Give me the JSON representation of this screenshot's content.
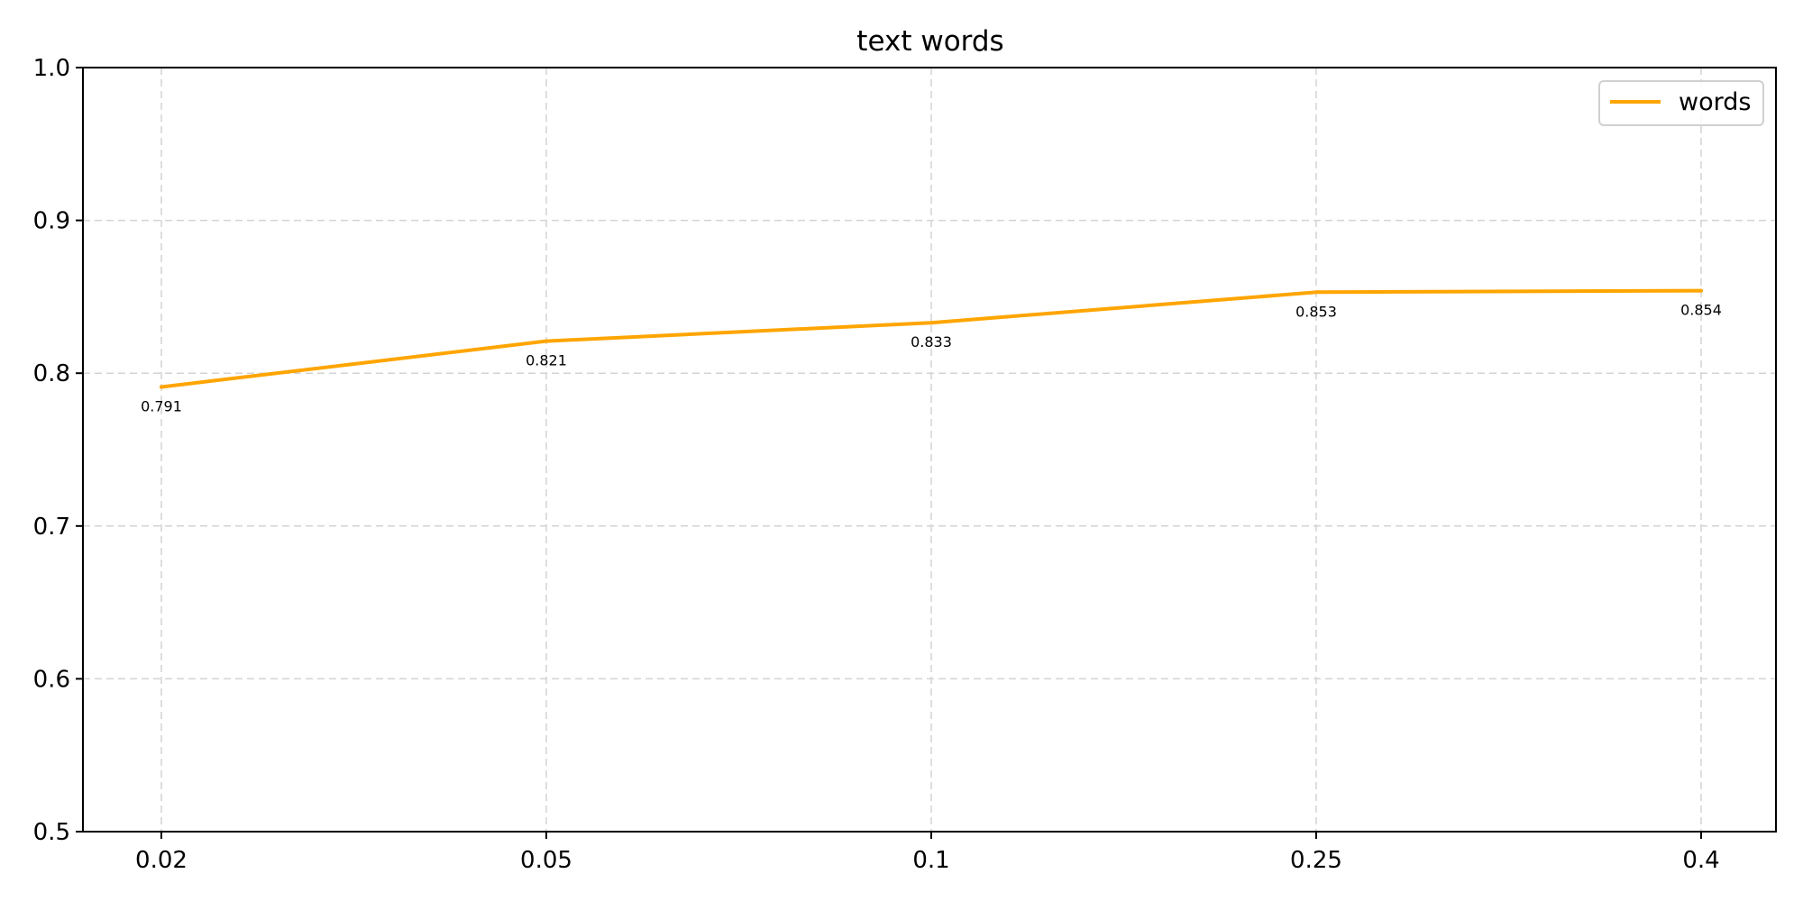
{
  "chart_data": {
    "type": "line",
    "title": "text words",
    "xlabel": "",
    "ylabel": "",
    "categories": [
      "0.02",
      "0.05",
      "0.1",
      "0.25",
      "0.4"
    ],
    "series": [
      {
        "name": "words",
        "color": "#FFA500",
        "values": [
          0.791,
          0.821,
          0.833,
          0.853,
          0.854
        ],
        "labels": [
          "0.791",
          "0.821",
          "0.833",
          "0.853",
          "0.854"
        ]
      }
    ],
    "ylim": [
      0.5,
      1.0
    ],
    "yticks": [
      "0.5",
      "0.6",
      "0.7",
      "0.8",
      "0.9",
      "1.0"
    ],
    "grid": true,
    "legend_position": "top-right"
  }
}
